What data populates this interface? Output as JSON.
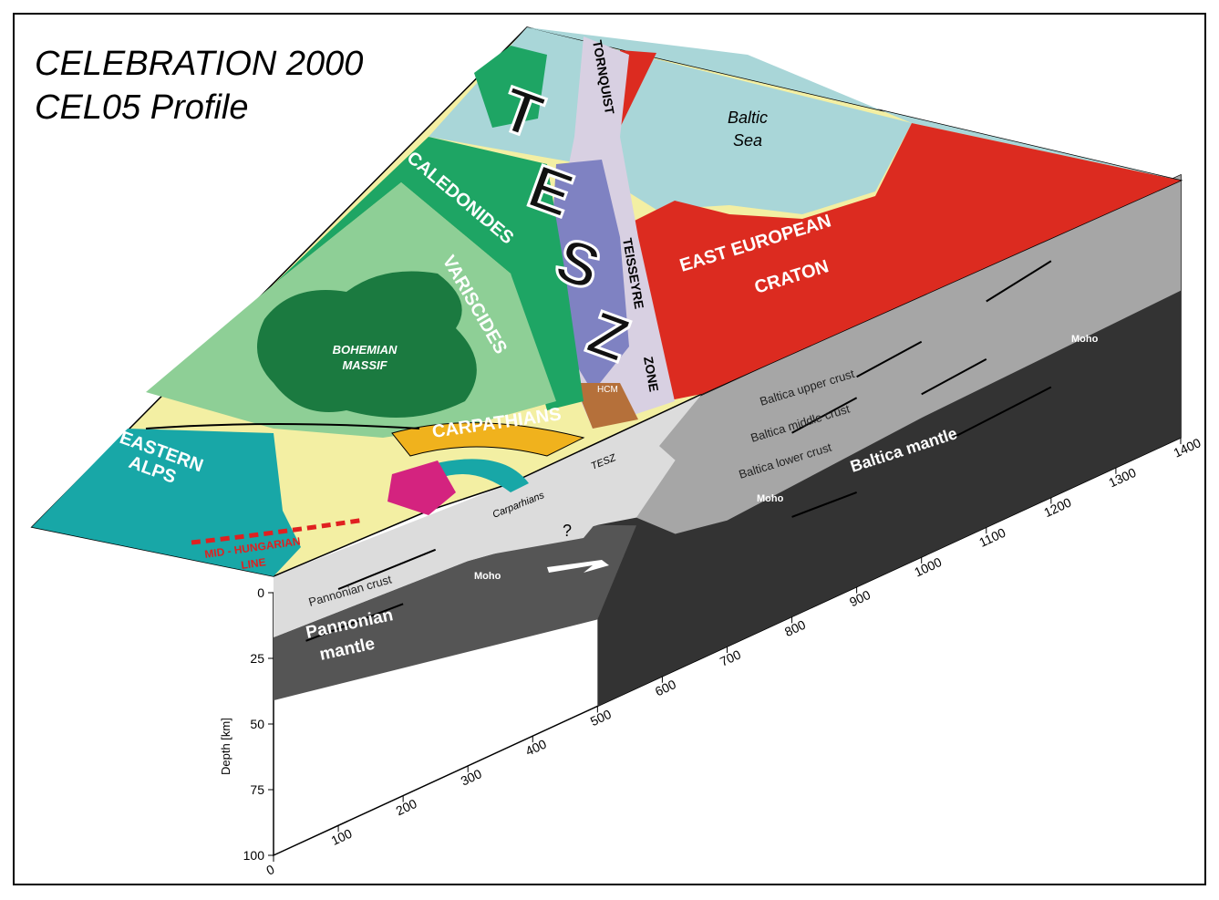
{
  "title": {
    "line1": "CELEBRATION 2000",
    "line2": "CEL05 Profile"
  },
  "map_labels": {
    "tornquist": "TORNQUIST",
    "baltic_sea": [
      "Baltic",
      "Sea"
    ],
    "tesz_letters": [
      "T",
      "E",
      "S",
      "Z"
    ],
    "caledonides": "CALEDONIDES",
    "teisseyre": "TEISSEYRE",
    "zone": "ZONE",
    "east_european_craton": [
      "EAST EUROPEAN",
      "CRATON"
    ],
    "variscides": "VARISCIDES",
    "bohemian_massif": [
      "BOHEMIAN",
      "MASSIF"
    ],
    "hcm": "HCM",
    "eastern_alps": [
      "EASTERN",
      "ALPS"
    ],
    "carpathians": "CARPATHIANS",
    "mid_hungarian_line": [
      "MID - HUNGARIAN",
      "LINE"
    ]
  },
  "section_labels": {
    "baltica_upper_crust": "Baltica upper crust",
    "baltica_middle_crust": "Baltica middle crust",
    "baltica_lower_crust": "Baltica lower crust",
    "baltica_mantle": "Baltica mantle",
    "moho": "Moho",
    "carpathians": "Carparhians",
    "tesz": "TESZ",
    "question": "?",
    "pannonian_crust": "Pannonian crust",
    "pannonian_mantle": [
      "Pannonian",
      "mantle"
    ]
  },
  "axes": {
    "depth": {
      "label": "Depth [km]",
      "ticks": [
        0,
        25,
        50,
        75,
        100
      ]
    },
    "distance": {
      "ticks": [
        0,
        100,
        200,
        300,
        400,
        500,
        600,
        700,
        800,
        900,
        1000,
        1100,
        1200,
        1300,
        1400
      ]
    }
  }
}
